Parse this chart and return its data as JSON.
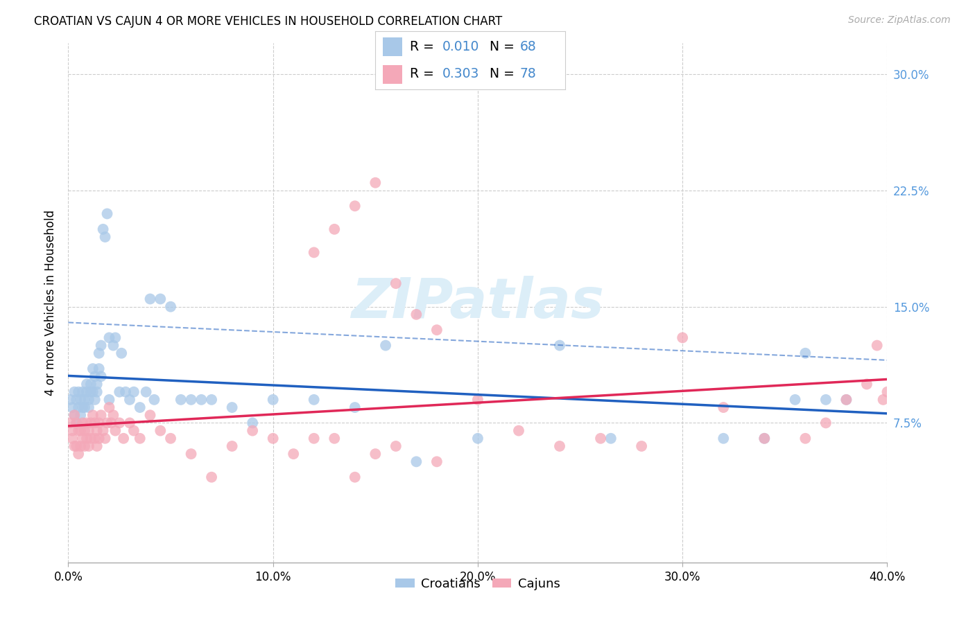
{
  "title": "CROATIAN VS CAJUN 4 OR MORE VEHICLES IN HOUSEHOLD CORRELATION CHART",
  "source": "Source: ZipAtlas.com",
  "ylabel": "4 or more Vehicles in Household",
  "xlim": [
    0.0,
    0.4
  ],
  "ylim": [
    -0.015,
    0.32
  ],
  "yticks": [
    0.075,
    0.15,
    0.225,
    0.3
  ],
  "ytick_labels": [
    "7.5%",
    "15.0%",
    "22.5%",
    "30.0%"
  ],
  "xticks": [
    0.0,
    0.1,
    0.2,
    0.3,
    0.4
  ],
  "xtick_labels": [
    "0.0%",
    "10.0%",
    "20.0%",
    "30.0%",
    "40.0%"
  ],
  "croatian_R": 0.01,
  "croatian_N": 68,
  "cajun_R": 0.303,
  "cajun_N": 78,
  "croatian_color": "#a8c8e8",
  "cajun_color": "#f4a8b8",
  "trendline_croatian_color": "#2060c0",
  "trendline_cajun_color": "#e02858",
  "trendline_croatian_dash_color": "#90b8e0",
  "watermark_color": "#dceef8",
  "tick_color": "#5599dd",
  "legend_text_color": "#000000",
  "legend_number_color": "#4488cc",
  "grid_color": "#cccccc",
  "background_color": "#ffffff",
  "title_fontsize": 12,
  "source_fontsize": 10,
  "tick_fontsize": 12,
  "ylabel_fontsize": 12,
  "croatian_x": [
    0.001,
    0.002,
    0.003,
    0.003,
    0.004,
    0.004,
    0.005,
    0.005,
    0.006,
    0.006,
    0.007,
    0.007,
    0.008,
    0.008,
    0.009,
    0.009,
    0.01,
    0.01,
    0.011,
    0.011,
    0.012,
    0.012,
    0.013,
    0.013,
    0.014,
    0.014,
    0.015,
    0.015,
    0.016,
    0.016,
    0.017,
    0.018,
    0.019,
    0.02,
    0.02,
    0.022,
    0.023,
    0.025,
    0.026,
    0.028,
    0.03,
    0.032,
    0.035,
    0.038,
    0.04,
    0.042,
    0.045,
    0.05,
    0.055,
    0.06,
    0.065,
    0.07,
    0.08,
    0.09,
    0.1,
    0.12,
    0.14,
    0.155,
    0.17,
    0.2,
    0.24,
    0.265,
    0.32,
    0.34,
    0.355,
    0.36,
    0.37,
    0.38
  ],
  "croatian_y": [
    0.09,
    0.085,
    0.095,
    0.08,
    0.09,
    0.075,
    0.085,
    0.095,
    0.09,
    0.08,
    0.085,
    0.095,
    0.09,
    0.085,
    0.095,
    0.1,
    0.09,
    0.085,
    0.095,
    0.1,
    0.11,
    0.095,
    0.105,
    0.09,
    0.095,
    0.1,
    0.12,
    0.11,
    0.125,
    0.105,
    0.2,
    0.195,
    0.21,
    0.09,
    0.13,
    0.125,
    0.13,
    0.095,
    0.12,
    0.095,
    0.09,
    0.095,
    0.085,
    0.095,
    0.155,
    0.09,
    0.155,
    0.15,
    0.09,
    0.09,
    0.09,
    0.09,
    0.085,
    0.075,
    0.09,
    0.09,
    0.085,
    0.125,
    0.05,
    0.065,
    0.125,
    0.065,
    0.065,
    0.065,
    0.09,
    0.12,
    0.09,
    0.09
  ],
  "cajun_x": [
    0.001,
    0.002,
    0.002,
    0.003,
    0.003,
    0.004,
    0.004,
    0.005,
    0.005,
    0.006,
    0.006,
    0.007,
    0.007,
    0.008,
    0.008,
    0.009,
    0.009,
    0.01,
    0.01,
    0.011,
    0.011,
    0.012,
    0.013,
    0.013,
    0.014,
    0.014,
    0.015,
    0.015,
    0.016,
    0.017,
    0.018,
    0.019,
    0.02,
    0.021,
    0.022,
    0.023,
    0.025,
    0.027,
    0.03,
    0.032,
    0.035,
    0.04,
    0.045,
    0.05,
    0.06,
    0.07,
    0.08,
    0.09,
    0.1,
    0.11,
    0.12,
    0.13,
    0.14,
    0.15,
    0.16,
    0.18,
    0.2,
    0.22,
    0.24,
    0.26,
    0.28,
    0.3,
    0.32,
    0.34,
    0.36,
    0.37,
    0.38,
    0.39,
    0.395,
    0.398,
    0.4,
    0.12,
    0.13,
    0.14,
    0.15,
    0.16,
    0.17,
    0.18
  ],
  "cajun_y": [
    0.075,
    0.07,
    0.065,
    0.08,
    0.06,
    0.075,
    0.06,
    0.07,
    0.055,
    0.07,
    0.06,
    0.075,
    0.065,
    0.07,
    0.06,
    0.065,
    0.075,
    0.07,
    0.06,
    0.075,
    0.065,
    0.08,
    0.075,
    0.065,
    0.07,
    0.06,
    0.075,
    0.065,
    0.08,
    0.07,
    0.065,
    0.075,
    0.085,
    0.075,
    0.08,
    0.07,
    0.075,
    0.065,
    0.075,
    0.07,
    0.065,
    0.08,
    0.07,
    0.065,
    0.055,
    0.04,
    0.06,
    0.07,
    0.065,
    0.055,
    0.065,
    0.065,
    0.04,
    0.055,
    0.06,
    0.05,
    0.09,
    0.07,
    0.06,
    0.065,
    0.06,
    0.13,
    0.085,
    0.065,
    0.065,
    0.075,
    0.09,
    0.1,
    0.125,
    0.09,
    0.095,
    0.185,
    0.2,
    0.215,
    0.23,
    0.165,
    0.145,
    0.135
  ]
}
